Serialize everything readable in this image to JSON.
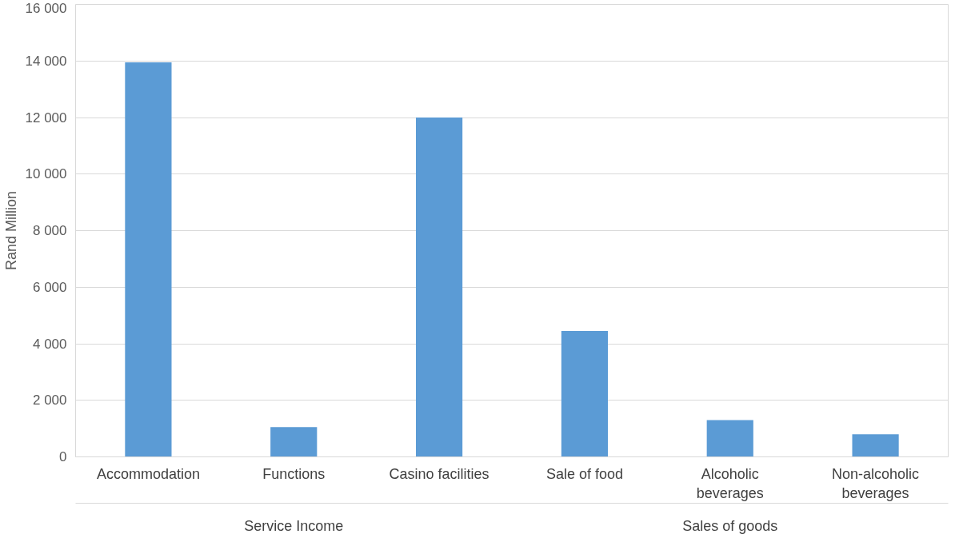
{
  "chart_data": {
    "type": "bar",
    "ylabel": "Rand Million",
    "categories": [
      "Accommodation",
      "Functions",
      "Casino facilities",
      "Sale of food",
      "Alcoholic beverages",
      "Non-alcoholic beverages"
    ],
    "values": [
      13950,
      1050,
      12000,
      4450,
      1300,
      800
    ],
    "color": "#5b9bd5",
    "ylim": [
      0,
      16000
    ],
    "yticks": [
      {
        "value": 0,
        "label": "0"
      },
      {
        "value": 2000,
        "label": "2 000"
      },
      {
        "value": 4000,
        "label": "4 000"
      },
      {
        "value": 6000,
        "label": "6 000"
      },
      {
        "value": 8000,
        "label": "8 000"
      },
      {
        "value": 10000,
        "label": "10 000"
      },
      {
        "value": 12000,
        "label": "12 000"
      },
      {
        "value": 14000,
        "label": "14 000"
      },
      {
        "value": 16000,
        "label": "16 000"
      }
    ],
    "grid": "y",
    "annotations": [
      "Service Income",
      "Sales of goods"
    ]
  }
}
